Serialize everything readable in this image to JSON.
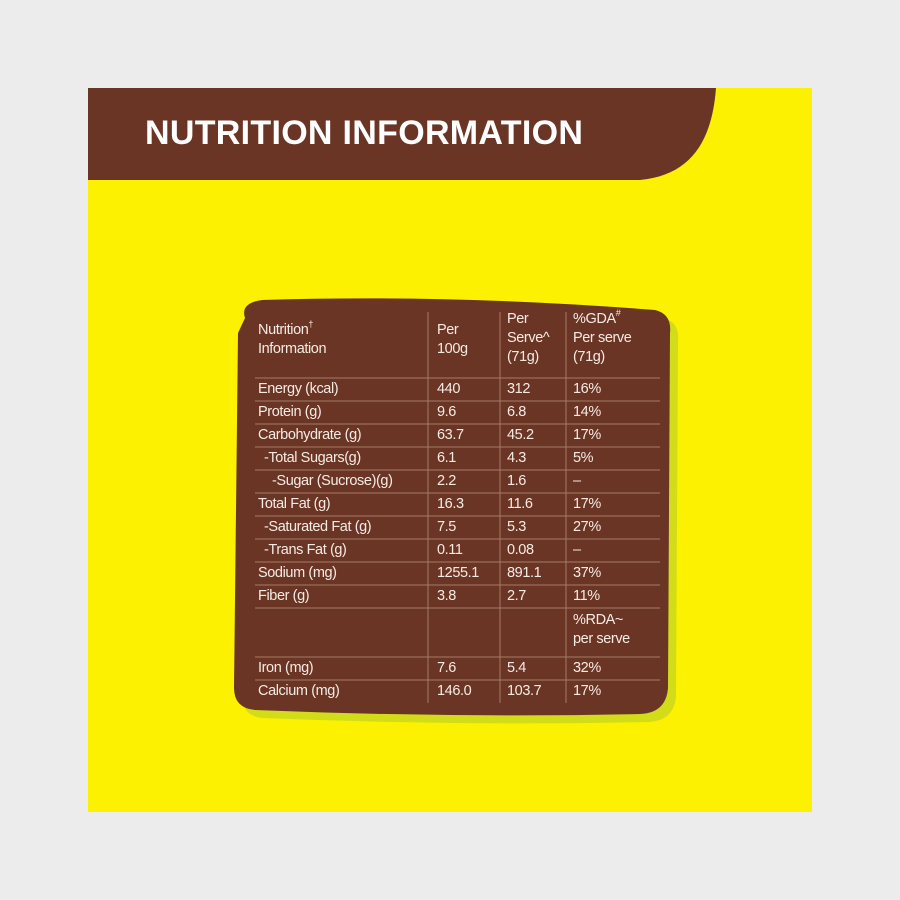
{
  "title": "NUTRITION INFORMATION",
  "table": {
    "header": [
      {
        "lines": [
          "Nutrition",
          "Information"
        ],
        "sup": "†"
      },
      {
        "lines": [
          "Per",
          "100g"
        ]
      },
      {
        "lines": [
          "Per",
          "Serve^",
          "(71g)"
        ]
      },
      {
        "lines": [
          "%GDA",
          "Per serve",
          "(71g)"
        ],
        "sup": "#"
      }
    ],
    "rows": [
      [
        "Energy (kcal)",
        "440",
        "312",
        "16%"
      ],
      [
        "Protein (g)",
        "9.6",
        "6.8",
        "14%"
      ],
      [
        "Carbohydrate (g)",
        "63.7",
        "45.2",
        "17%"
      ],
      [
        "-Total Sugars(g)",
        "6.1",
        "4.3",
        "5%"
      ],
      [
        "-Sugar (Sucrose)(g)",
        "2.2",
        "1.6",
        "–"
      ],
      [
        "Total Fat (g)",
        "16.3",
        "11.6",
        "17%"
      ],
      [
        "-Saturated Fat (g)",
        "7.5",
        "5.3",
        "27%"
      ],
      [
        "-Trans Fat (g)",
        "0.11",
        "0.08",
        "–"
      ],
      [
        "Sodium (mg)",
        "1255.1",
        "891.1",
        "37%"
      ],
      [
        "Fiber (g)",
        "3.8",
        "2.7",
        "11%"
      ]
    ],
    "rda_header": {
      "lines": [
        "%RDA~",
        "per serve"
      ]
    },
    "mineral_rows": [
      [
        "Iron (mg)",
        "7.6",
        "5.4",
        "32%"
      ],
      [
        "Calcium (mg)",
        "146.0",
        "103.7",
        "17%"
      ]
    ]
  }
}
